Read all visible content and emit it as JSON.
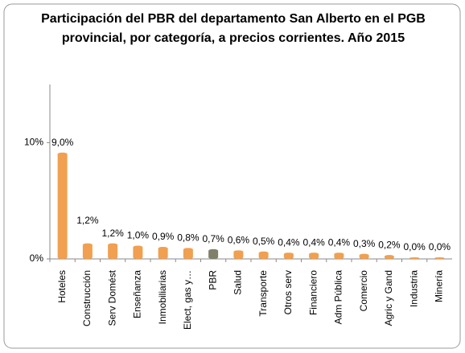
{
  "chart_data": {
    "type": "bar",
    "title": "Participación del PBR del departamento San Alberto en el PGB provincial, por categoría, a precios corrientes. Año 2015",
    "categories": [
      "Hoteles",
      "Construcción",
      "Serv Domést",
      "Enseñanza",
      "Inmobiliarias",
      "Elect, gas y…",
      "PBR",
      "Salud",
      "Transporte",
      "Otros serv",
      "Financiero",
      "Adm Pública",
      "Comercio",
      "Agric y Gand",
      "Industria",
      "Minería"
    ],
    "values": [
      9.0,
      1.2,
      1.2,
      1.0,
      0.9,
      0.8,
      0.7,
      0.6,
      0.5,
      0.4,
      0.4,
      0.4,
      0.3,
      0.2,
      0.0,
      0.0
    ],
    "value_labels": [
      "9,0%",
      "1,2%",
      "1,2%",
      "1,0%",
      "0,9%",
      "0,8%",
      "0,7%",
      "0,6%",
      "0,5%",
      "0,4%",
      "0,4%",
      "0,4%",
      "0,3%",
      "0,2%",
      "0,0%",
      "0,0%"
    ],
    "colors": [
      "#f0a050",
      "#f0a050",
      "#f0a050",
      "#f0a050",
      "#f0a050",
      "#f0a050",
      "#80806a",
      "#f0a050",
      "#f0a050",
      "#f0a050",
      "#f0a050",
      "#f0a050",
      "#f0a050",
      "#f0a050",
      "#f0a050",
      "#f0a050"
    ],
    "ylim": [
      0,
      15
    ],
    "yticks": [
      {
        "value": 0,
        "label": "0%"
      },
      {
        "value": 10,
        "label": "10%"
      }
    ]
  }
}
